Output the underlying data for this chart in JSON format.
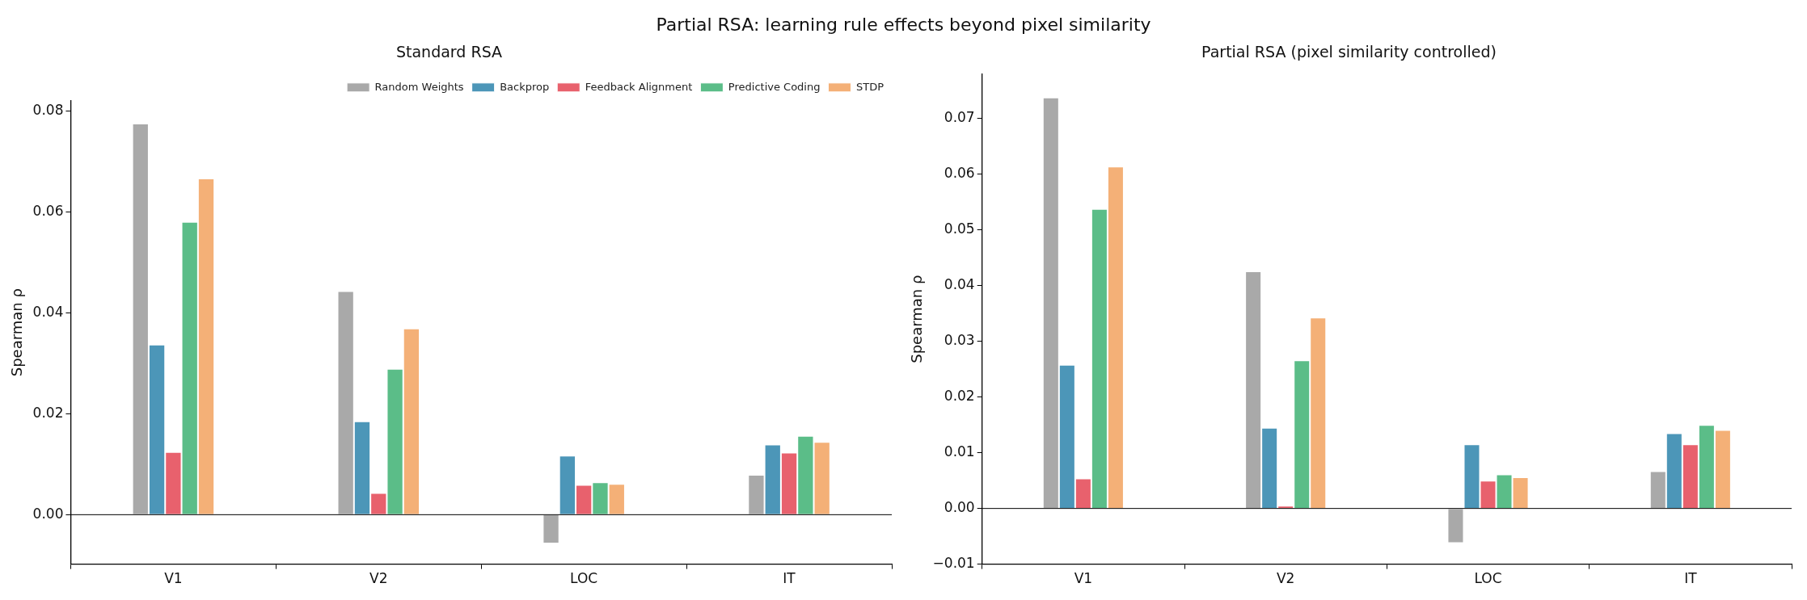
{
  "chart_data": [
    {
      "type": "bar",
      "title": "Partial RSA: learning rule effects beyond pixel similarity",
      "subtitle": "Standard RSA",
      "ylabel": "Spearman ρ",
      "categories": [
        "V1",
        "V2",
        "LOC",
        "IT"
      ],
      "series": [
        {
          "name": "Random Weights",
          "color": "#a9a9a9",
          "values": [
            0.0775,
            0.0443,
            -0.0057,
            0.0079
          ]
        },
        {
          "name": "Backprop",
          "color": "#4c96b8",
          "values": [
            0.0337,
            0.0185,
            0.0117,
            0.0139
          ]
        },
        {
          "name": "Feedback Alignment",
          "color": "#e8616d",
          "values": [
            0.0124,
            0.0043,
            0.0059,
            0.0123
          ]
        },
        {
          "name": "Predictive Coding",
          "color": "#5bbd88",
          "values": [
            0.058,
            0.0289,
            0.0064,
            0.0156
          ]
        },
        {
          "name": "STDP",
          "color": "#f4b077",
          "values": [
            0.0666,
            0.0369,
            0.0061,
            0.0144
          ]
        }
      ],
      "ylim": [
        -0.0098,
        0.082
      ],
      "yticks": [
        {
          "value": 0,
          "label": "0.00"
        },
        {
          "value": 0.02,
          "label": "0.02"
        },
        {
          "value": 0.04,
          "label": "0.04"
        },
        {
          "value": 0.06,
          "label": "0.06"
        },
        {
          "value": 0.08,
          "label": "0.08"
        }
      ],
      "ref_lines": [
        {
          "axis": "y",
          "value": 0,
          "color": "#000000"
        }
      ],
      "grid": false,
      "legend": "top right"
    },
    {
      "type": "bar",
      "subtitle": "Partial RSA (pixel similarity controlled)",
      "ylabel": "Spearman ρ",
      "categories": [
        "V1",
        "V2",
        "LOC",
        "IT"
      ],
      "series": [
        {
          "color": "#a9a9a9",
          "values": [
            0.0738,
            0.0426,
            -0.0062,
            0.0067
          ]
        },
        {
          "color": "#4c96b8",
          "values": [
            0.0258,
            0.0145,
            0.0115,
            0.0135
          ]
        },
        {
          "color": "#e8616d",
          "values": [
            0.0054,
            0.0005,
            0.005,
            0.0115
          ]
        },
        {
          "color": "#5bbd88",
          "values": [
            0.0538,
            0.0266,
            0.0061,
            0.015
          ]
        },
        {
          "color": "#f4b077",
          "values": [
            0.0614,
            0.0343,
            0.0056,
            0.0141
          ]
        }
      ],
      "ylim": [
        -0.01,
        0.078
      ],
      "yticks": [
        {
          "value": -0.01,
          "label": "−0.01"
        },
        {
          "value": 0,
          "label": "0.00"
        },
        {
          "value": 0.01,
          "label": "0.01"
        },
        {
          "value": 0.02,
          "label": "0.02"
        },
        {
          "value": 0.03,
          "label": "0.03"
        },
        {
          "value": 0.04,
          "label": "0.04"
        },
        {
          "value": 0.05,
          "label": "0.05"
        },
        {
          "value": 0.06,
          "label": "0.06"
        },
        {
          "value": 0.07,
          "label": "0.07"
        }
      ],
      "ref_lines": [
        {
          "axis": "y",
          "value": 0,
          "color": "#000000"
        }
      ],
      "grid": false,
      "legend": false
    }
  ]
}
